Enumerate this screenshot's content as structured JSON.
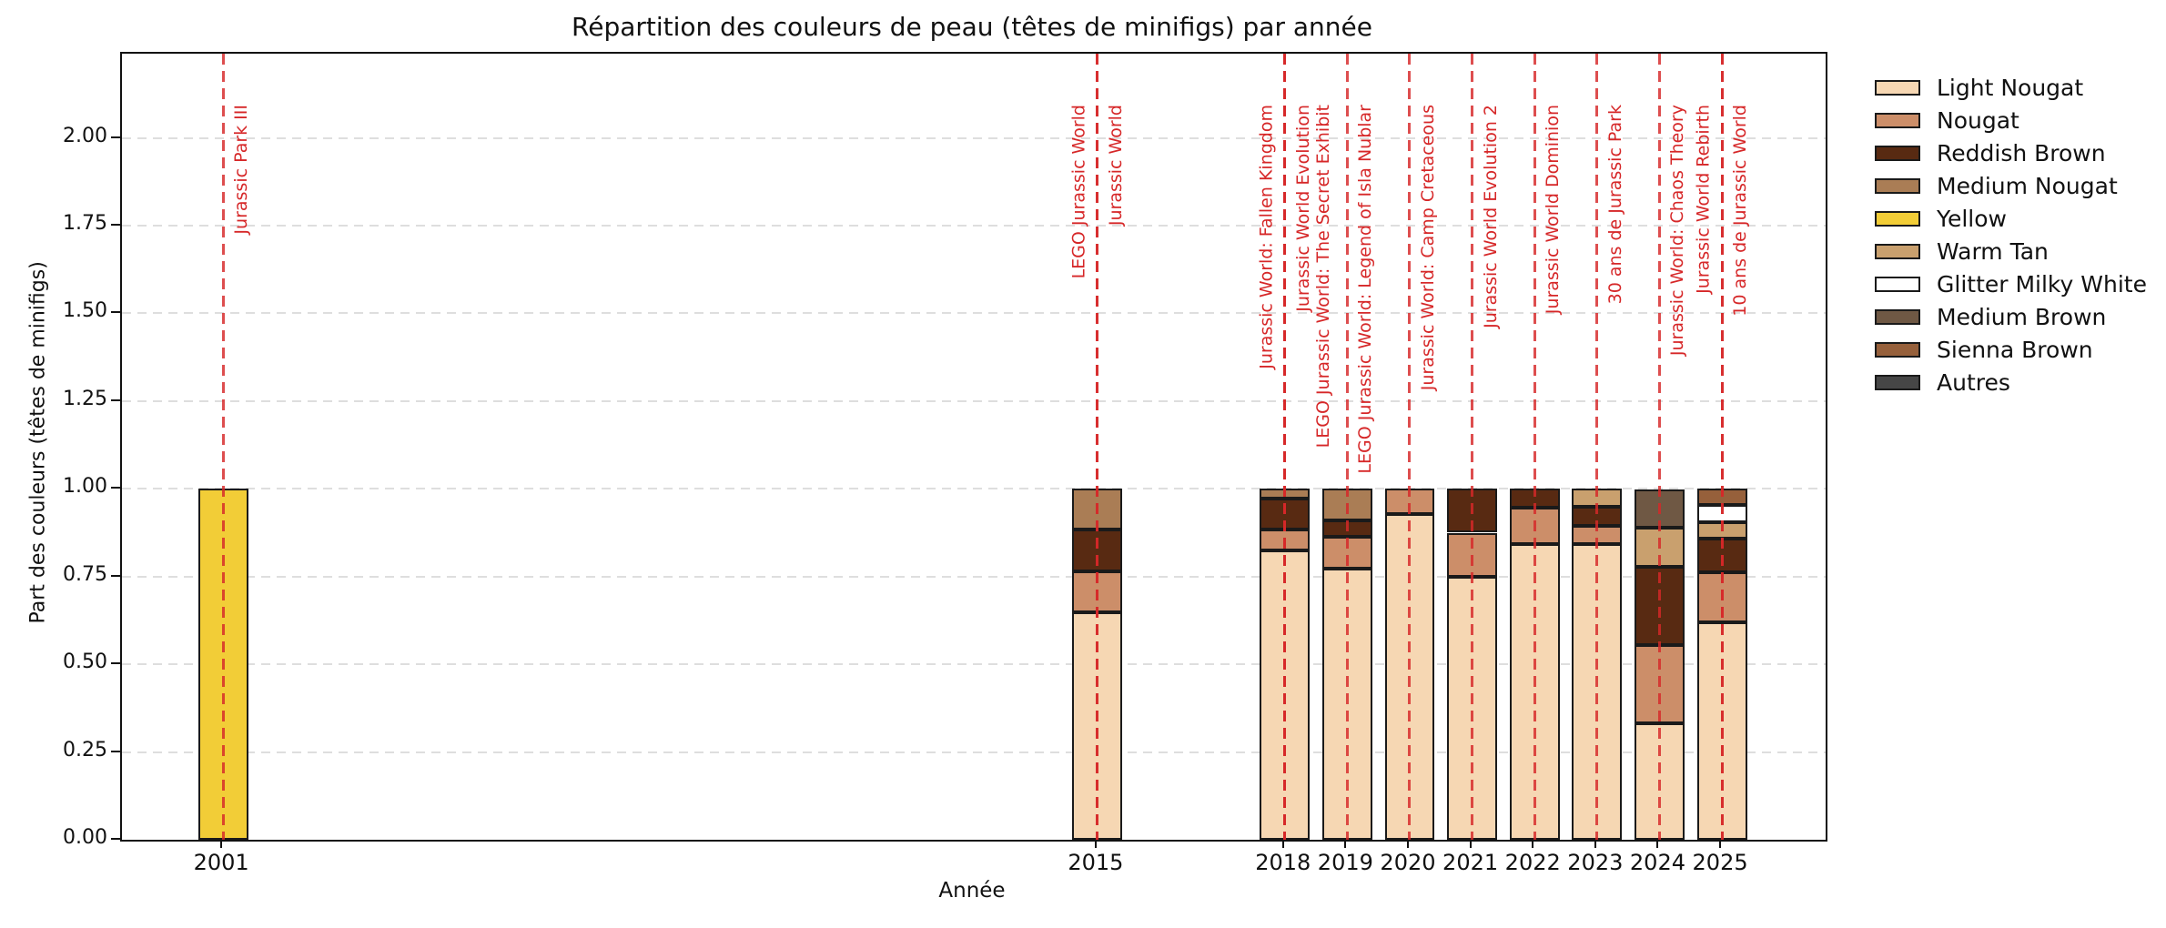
{
  "title": "Répartition des couleurs de peau (têtes de minifigs) par année",
  "x_axis": {
    "label": "Année",
    "ticks": [
      "2001",
      "2015",
      "2018",
      "2019",
      "2020",
      "2021",
      "2022",
      "2023",
      "2024",
      "2025"
    ]
  },
  "y_axis": {
    "label": "Part des couleurs (têtes de minifigs)",
    "ticks": [
      "0.00",
      "0.25",
      "0.50",
      "0.75",
      "1.00",
      "1.25",
      "1.50",
      "1.75",
      "2.00"
    ]
  },
  "accent_colors": {
    "event_line_red": "#d62728",
    "bar_edge": "#1a1a1a",
    "grid_gray": "#dedede"
  },
  "legend": {
    "entries": [
      {
        "name": "Light Nougat",
        "color": "#F6D7B3"
      },
      {
        "name": "Nougat",
        "color": "#CC8E69"
      },
      {
        "name": "Reddish Brown",
        "color": "#582A12"
      },
      {
        "name": "Medium Nougat",
        "color": "#AA7D55"
      },
      {
        "name": "Yellow",
        "color": "#F2CD37"
      },
      {
        "name": "Warm Tan",
        "color": "#C9A06E"
      },
      {
        "name": "Glitter Milky White",
        "color": "#FFFFFF"
      },
      {
        "name": "Medium Brown",
        "color": "#6F5844"
      },
      {
        "name": "Sienna Brown",
        "color": "#96603B"
      },
      {
        "name": "Autres",
        "color": "#464646"
      }
    ]
  },
  "chart_data": {
    "type": "bar",
    "stacked": true,
    "title": "Répartition des couleurs de peau (têtes de minifigs) par année",
    "xlabel": "Année",
    "ylabel": "Part des couleurs (têtes de minifigs)",
    "categories": [
      2001,
      2015,
      2018,
      2019,
      2020,
      2021,
      2022,
      2023,
      2024,
      2025
    ],
    "series": [
      {
        "name": "Light Nougat",
        "color": "#F6D7B3",
        "values": [
          0,
          0.647,
          0.824,
          0.773,
          0.929,
          0.75,
          0.842,
          0.842,
          0.333,
          0.619
        ]
      },
      {
        "name": "Nougat",
        "color": "#CC8E69",
        "values": [
          0,
          0.118,
          0.059,
          0.091,
          0.071,
          0.125,
          0.105,
          0.053,
          0.222,
          0.143
        ]
      },
      {
        "name": "Reddish Brown",
        "color": "#582A12",
        "values": [
          0,
          0.118,
          0.088,
          0.045,
          0,
          0.125,
          0.053,
          0.053,
          0.222,
          0.095
        ]
      },
      {
        "name": "Medium Nougat",
        "color": "#AA7D55",
        "values": [
          0,
          0.117,
          0.029,
          0.091,
          0,
          0,
          0,
          0,
          0,
          0
        ]
      },
      {
        "name": "Yellow",
        "color": "#F2CD37",
        "values": [
          1.0,
          0,
          0,
          0,
          0,
          0,
          0,
          0,
          0,
          0
        ]
      },
      {
        "name": "Warm Tan",
        "color": "#C9A06E",
        "values": [
          0,
          0,
          0,
          0,
          0,
          0,
          0,
          0.052,
          0.111,
          0.048
        ]
      },
      {
        "name": "Glitter Milky White",
        "color": "#FFFFFF",
        "values": [
          0,
          0,
          0,
          0,
          0,
          0,
          0,
          0,
          0,
          0.048
        ]
      },
      {
        "name": "Medium Brown",
        "color": "#6F5844",
        "values": [
          0,
          0,
          0,
          0,
          0,
          0,
          0,
          0,
          0.111,
          0
        ]
      },
      {
        "name": "Sienna Brown",
        "color": "#96603B",
        "values": [
          0,
          0,
          0,
          0,
          0,
          0,
          0,
          0,
          0,
          0.048
        ]
      },
      {
        "name": "Autres",
        "color": "#464646",
        "values": [
          0,
          0,
          0,
          0,
          0,
          0,
          0,
          0,
          0,
          0
        ]
      }
    ],
    "bar_width_years": 0.8,
    "xlim": [
      1999.38,
      2026.66
    ],
    "ylim": [
      0,
      2.24
    ],
    "grid": true,
    "grid_style": "dashed-horizontal",
    "legend_position": "outside-right",
    "annotations": [
      {
        "year": 2001,
        "label": "Jurassic Park III",
        "side": "right",
        "offset": 0
      },
      {
        "year": 2015,
        "label": "LEGO Jurassic World",
        "side": "left",
        "offset": 0
      },
      {
        "year": 2015,
        "label": "Jurassic World",
        "side": "right",
        "offset": 0
      },
      {
        "year": 2018,
        "label": "Jurassic World: Fallen Kingdom",
        "side": "left",
        "offset": 0
      },
      {
        "year": 2018,
        "label": "Jurassic World Evolution",
        "side": "right",
        "offset": 0
      },
      {
        "year": 2018,
        "label": "LEGO Jurassic World: The Secret Exhibit",
        "side": "right",
        "offset": 1
      },
      {
        "year": 2019,
        "label": "LEGO Jurassic World: Legend of Isla Nublar",
        "side": "right",
        "offset": 0
      },
      {
        "year": 2020,
        "label": "Jurassic World: Camp Cretaceous",
        "side": "right",
        "offset": 0
      },
      {
        "year": 2021,
        "label": "Jurassic World Evolution 2",
        "side": "right",
        "offset": 0
      },
      {
        "year": 2022,
        "label": "Jurassic World Dominion",
        "side": "right",
        "offset": 0
      },
      {
        "year": 2023,
        "label": "30 ans de Jurassic Park",
        "side": "right",
        "offset": 0
      },
      {
        "year": 2024,
        "label": "Jurassic World: Chaos Theory",
        "side": "right",
        "offset": 0
      },
      {
        "year": 2025,
        "label": "Jurassic World Rebirth",
        "side": "left",
        "offset": 0
      },
      {
        "year": 2025,
        "label": "10 ans de Jurassic World",
        "side": "right",
        "offset": 0
      }
    ]
  }
}
